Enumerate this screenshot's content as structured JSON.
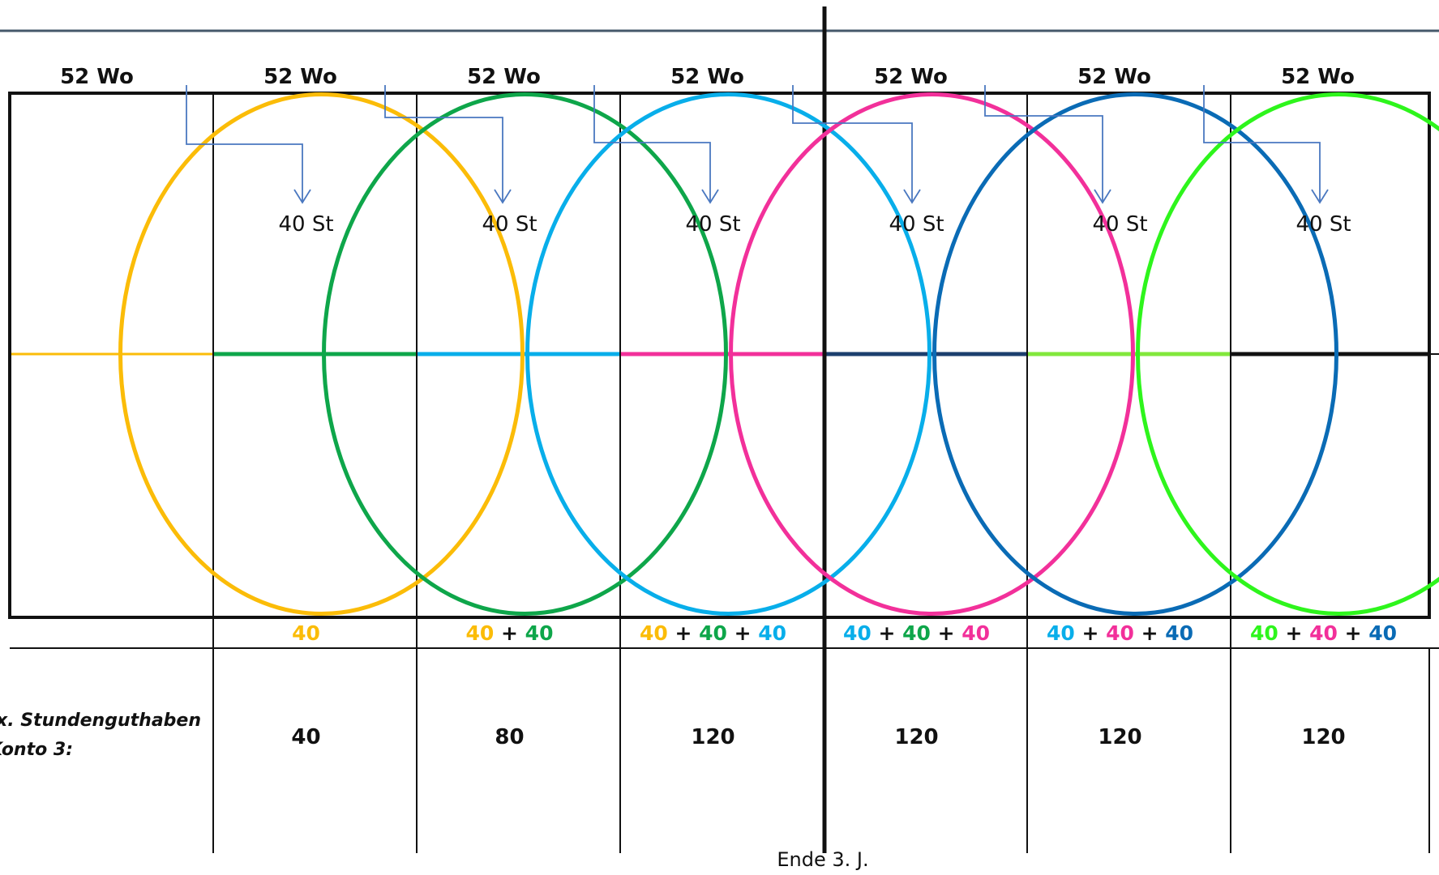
{
  "colors": {
    "yellow": "#fbbc08",
    "green": "#0ea64a",
    "cyan": "#08aeea",
    "pink": "#f2309a",
    "navy": "#1c3f6e",
    "lime": "#82e83c",
    "blue": "#0a6bb5",
    "bright_green": "#2ef51c",
    "arrow": "#4a78c0",
    "top_rule": "#46596b"
  },
  "columns": [
    {
      "header": "52 Wo",
      "deposit": "",
      "sum_terms": [],
      "total": ""
    },
    {
      "header": "52 Wo",
      "deposit": "40 St",
      "sum_terms": [
        {
          "text": "40",
          "color": "yellow"
        }
      ],
      "total": "40"
    },
    {
      "header": "52 Wo",
      "deposit": "40 St",
      "sum_terms": [
        {
          "text": "40",
          "color": "yellow"
        },
        {
          "text": "40",
          "color": "green"
        }
      ],
      "total": "80"
    },
    {
      "header": "52 Wo",
      "deposit": "40 St",
      "sum_terms": [
        {
          "text": "40",
          "color": "yellow"
        },
        {
          "text": "40",
          "color": "green"
        },
        {
          "text": "40",
          "color": "cyan"
        }
      ],
      "total": "120"
    },
    {
      "header": "52 Wo",
      "deposit": "40 St",
      "sum_terms": [
        {
          "text": "40",
          "color": "cyan"
        },
        {
          "text": "40",
          "color": "green"
        },
        {
          "text": "40",
          "color": "pink"
        }
      ],
      "total": "120"
    },
    {
      "header": "52 Wo",
      "deposit": "40 St",
      "sum_terms": [
        {
          "text": "40",
          "color": "cyan"
        },
        {
          "text": "40",
          "color": "pink"
        },
        {
          "text": "40",
          "color": "blue"
        }
      ],
      "total": "120"
    },
    {
      "header": "52 Wo",
      "deposit": "40 St",
      "sum_terms": [
        {
          "text": "40",
          "color": "bright_green"
        },
        {
          "text": "40",
          "color": "pink"
        },
        {
          "text": "40",
          "color": "blue"
        }
      ],
      "total": "120"
    }
  ],
  "plus_sign": "+",
  "ellipse_colors": [
    "yellow",
    "green",
    "cyan",
    "pink",
    "blue",
    "bright_green"
  ],
  "midline_colors": [
    "yellow",
    "green",
    "cyan",
    "pink",
    "navy",
    "lime",
    "black"
  ],
  "row_label_lines": [
    "x. Stundenguthaben",
    "Konto 3:"
  ],
  "footer_label": "Ende 3. J."
}
